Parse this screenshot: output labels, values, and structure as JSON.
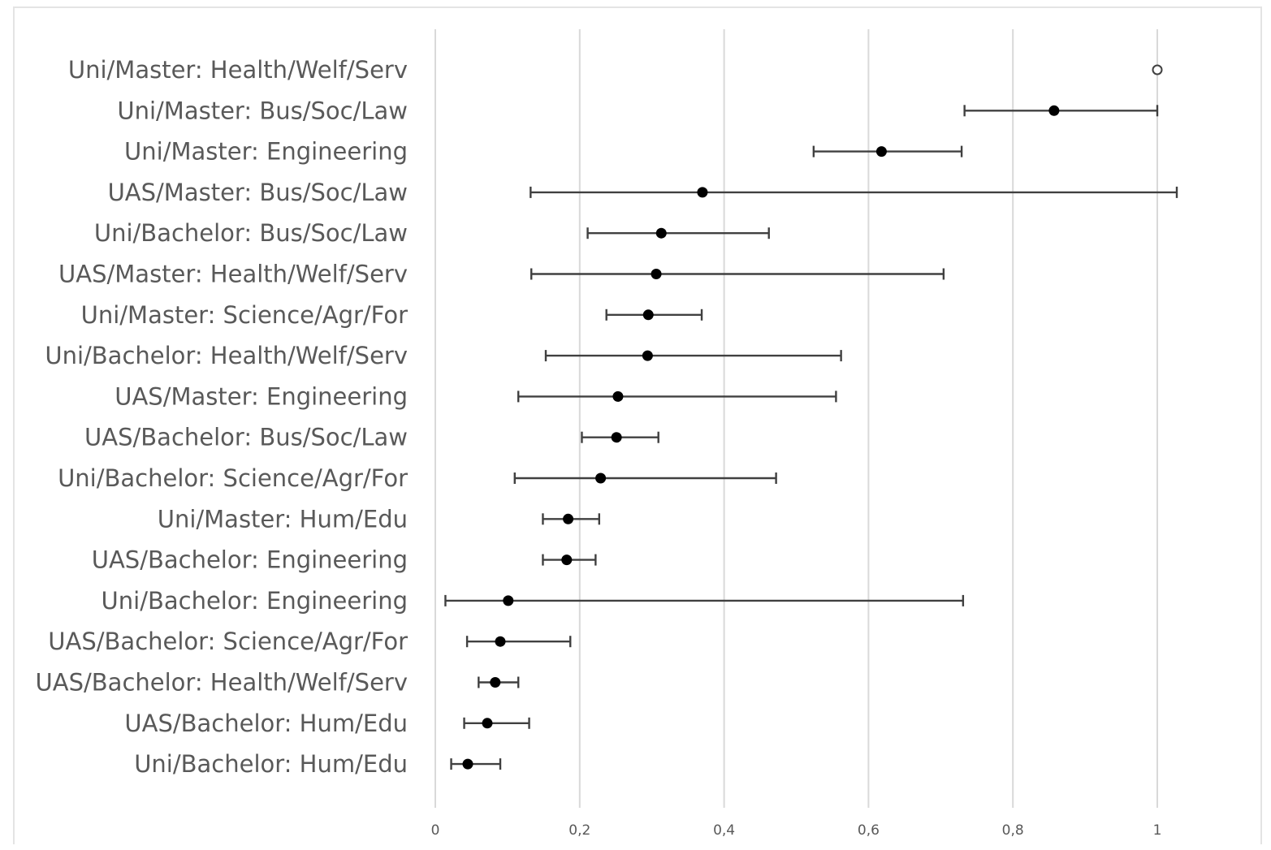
{
  "chart_data": {
    "type": "scatter",
    "orientation": "horizontal",
    "title": "",
    "xlabel": "",
    "ylabel": "",
    "xlim": [
      0,
      1
    ],
    "xticks": [
      0,
      0.2,
      0.4,
      0.6,
      0.8,
      1
    ],
    "xtick_labels": [
      "0",
      "0,2",
      "0,4",
      "0,6",
      "0,8",
      "1"
    ],
    "grid": "vertical",
    "legend": "none",
    "categories": [
      "Uni/Master: Health/Welf/Serv",
      "Uni/Master: Bus/Soc/Law",
      "Uni/Master: Engineering",
      "UAS/Master: Bus/Soc/Law",
      "Uni/Bachelor: Bus/Soc/Law",
      "UAS/Master: Health/Welf/Serv",
      "Uni/Master: Science/Agr/For",
      "Uni/Bachelor: Health/Welf/Serv",
      "UAS/Master: Engineering",
      "UAS/Bachelor: Bus/Soc/Law",
      "Uni/Bachelor: Science/Agr/For",
      "Uni/Master: Hum/Edu",
      "UAS/Bachelor: Engineering",
      "Uni/Bachelor: Engineering",
      "UAS/Bachelor: Science/Agr/For",
      "UAS/Bachelor: Health/Welf/Serv",
      "UAS/Bachelor: Hum/Edu",
      "Uni/Bachelor: Hum/Edu"
    ],
    "values": [
      1.0,
      0.857,
      0.618,
      0.37,
      0.313,
      0.306,
      0.295,
      0.294,
      0.253,
      0.251,
      0.229,
      0.184,
      0.182,
      0.101,
      0.09,
      0.083,
      0.072,
      0.045
    ],
    "error_low": [
      null,
      0.733,
      0.524,
      0.132,
      0.211,
      0.133,
      0.237,
      0.153,
      0.115,
      0.203,
      0.11,
      0.149,
      0.149,
      0.014,
      0.044,
      0.06,
      0.04,
      0.022
    ],
    "error_high": [
      null,
      1.0,
      0.729,
      1.027,
      0.462,
      0.704,
      0.369,
      0.562,
      0.555,
      0.309,
      0.472,
      0.227,
      0.222,
      0.731,
      0.187,
      0.115,
      0.13,
      0.09
    ],
    "marker_style": [
      "open",
      "filled",
      "filled",
      "filled",
      "filled",
      "filled",
      "filled",
      "filled",
      "filled",
      "filled",
      "filled",
      "filled",
      "filled",
      "filled",
      "filled",
      "filled",
      "filled",
      "filled"
    ],
    "colors": {
      "marker": "#000000",
      "error_bar": "#404040",
      "grid": "#d9d9d9",
      "text": "#595959"
    }
  }
}
